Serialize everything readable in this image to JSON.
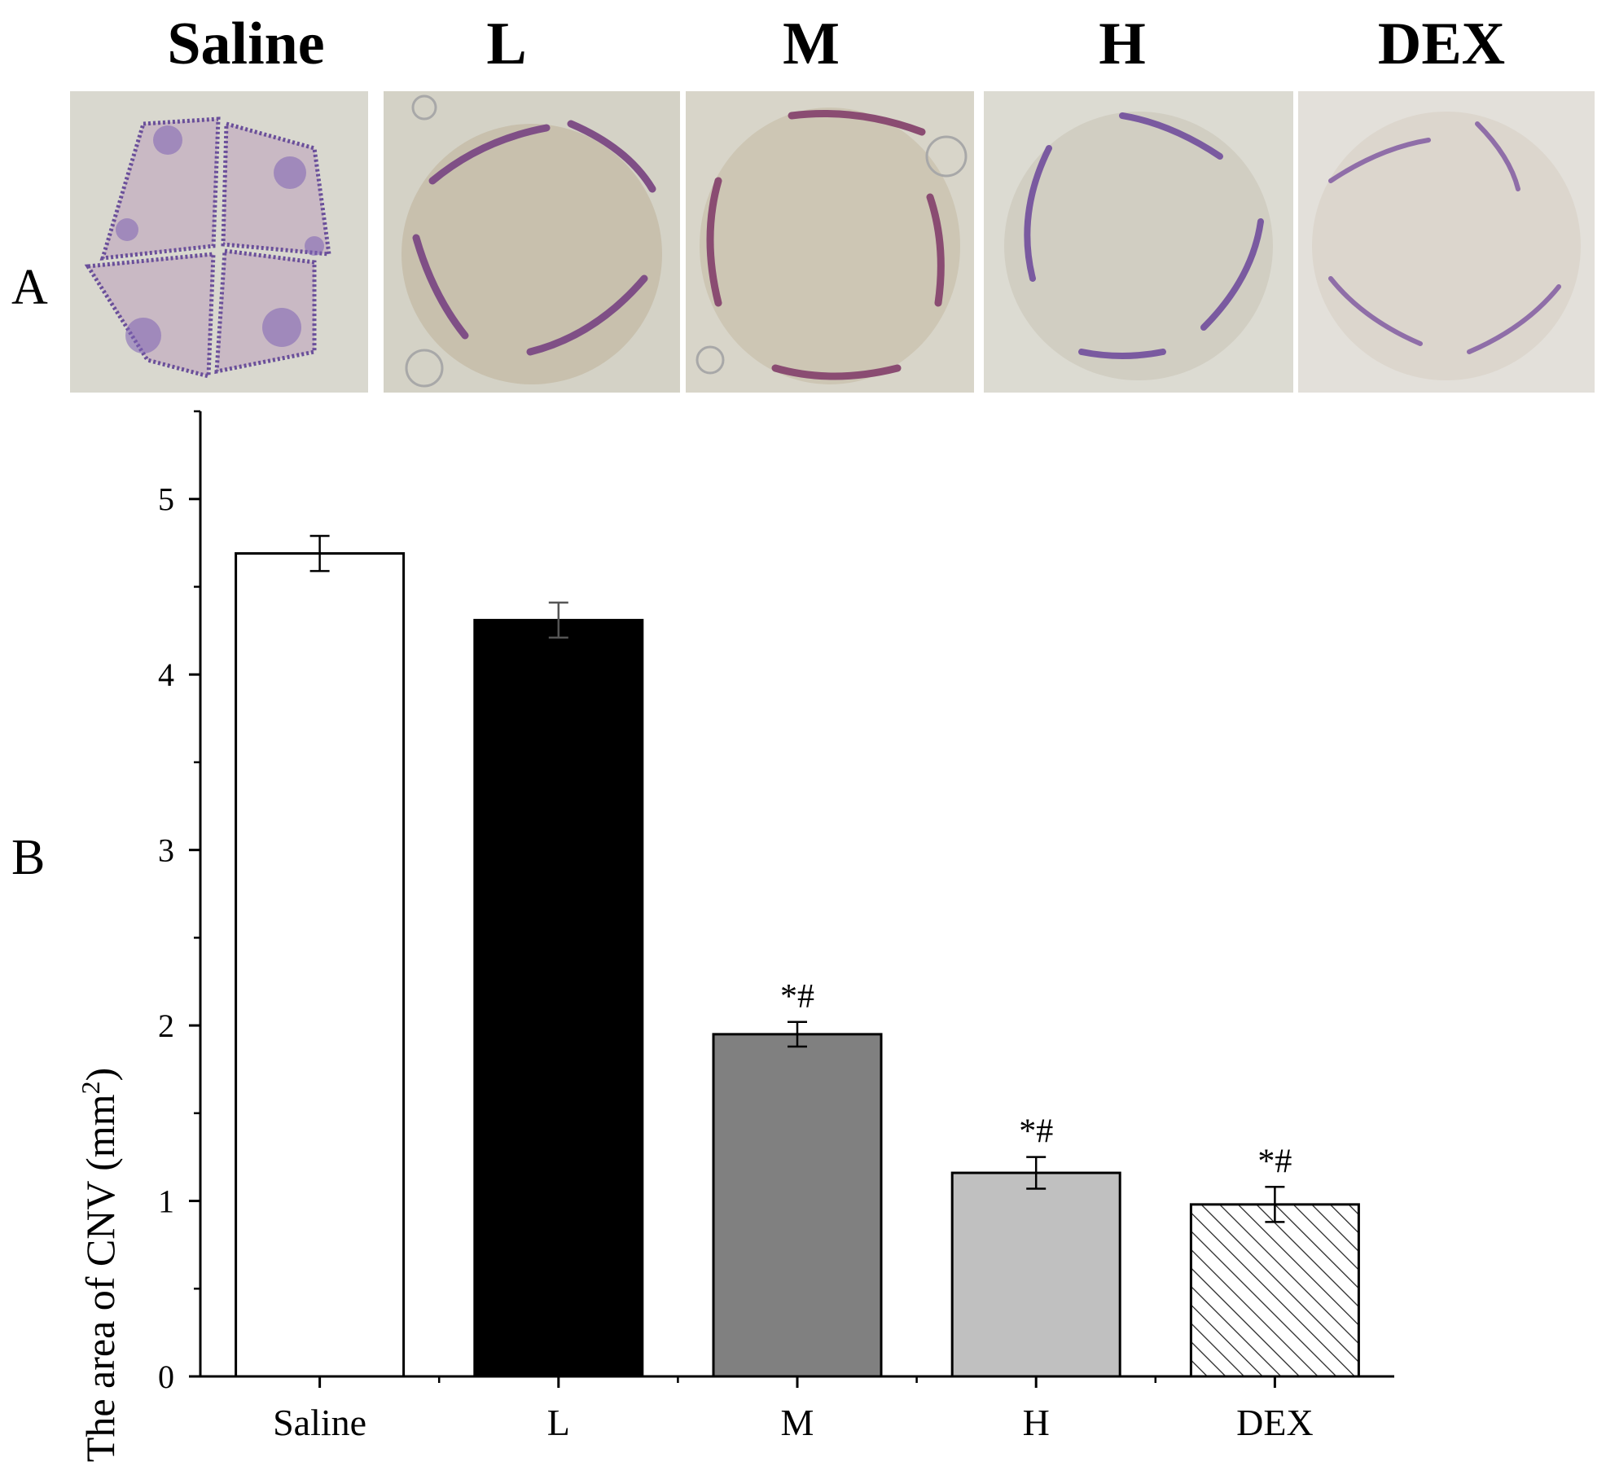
{
  "panel_labels": {
    "a": "A",
    "b": "B"
  },
  "panel_a": {
    "image_titles": [
      "Saline",
      "L",
      "M",
      "H",
      "DEX"
    ]
  },
  "chart_data": {
    "type": "bar",
    "categories": [
      "Saline",
      "L",
      "M",
      "H",
      "DEX"
    ],
    "values": [
      4.69,
      4.31,
      1.95,
      1.16,
      0.98
    ],
    "errors": [
      0.1,
      0.1,
      0.07,
      0.09,
      0.1
    ],
    "annotations": [
      "",
      "",
      "*#",
      "*#",
      "*#"
    ],
    "fills": [
      "#ffffff",
      "#000000",
      "#808080",
      "#c0c0c0",
      "hatch"
    ],
    "ylabel": "The area of CNV (mm²)",
    "ylabel_main": "The area of CNV (mm",
    "ylabel_sup": "2",
    "ylabel_end": ")",
    "xlabel": "",
    "title": "",
    "ylim": [
      0,
      5.5
    ],
    "yticks": [
      "0",
      "1",
      "2",
      "3",
      "4",
      "5"
    ],
    "grid": false
  }
}
